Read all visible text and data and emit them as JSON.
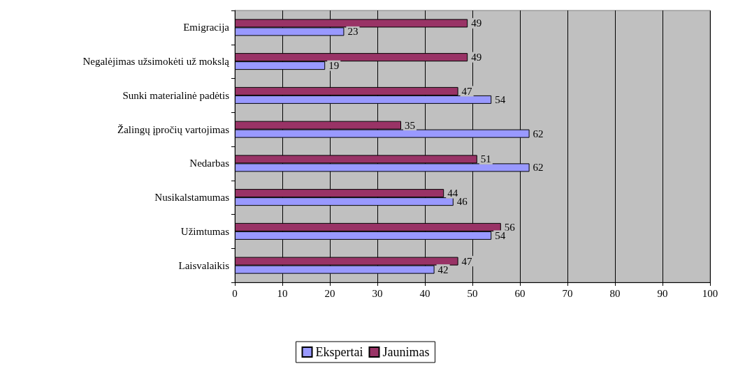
{
  "chart_data": {
    "type": "bar",
    "orientation": "horizontal",
    "categories": [
      "Emigracija",
      "Negalėjimas užsimokėti už mokslą",
      "Sunki materialinė padėtis",
      "Žalingų įpročių vartojimas",
      "Nedarbas",
      "Nusikalstamumas",
      "Užimtumas",
      "Laisvalaikis"
    ],
    "series": [
      {
        "name": "Ekspertai",
        "color": "#9999ff",
        "values": [
          23,
          19,
          54,
          62,
          62,
          46,
          54,
          42
        ]
      },
      {
        "name": "Jaunimas",
        "color": "#993366",
        "values": [
          49,
          49,
          47,
          35,
          51,
          44,
          56,
          47
        ]
      }
    ],
    "xlim": [
      0,
      100
    ],
    "xticks": [
      0,
      10,
      20,
      30,
      40,
      50,
      60,
      70,
      80,
      90,
      100
    ],
    "grid": "x",
    "legend": "bottom",
    "data_labels": true
  }
}
